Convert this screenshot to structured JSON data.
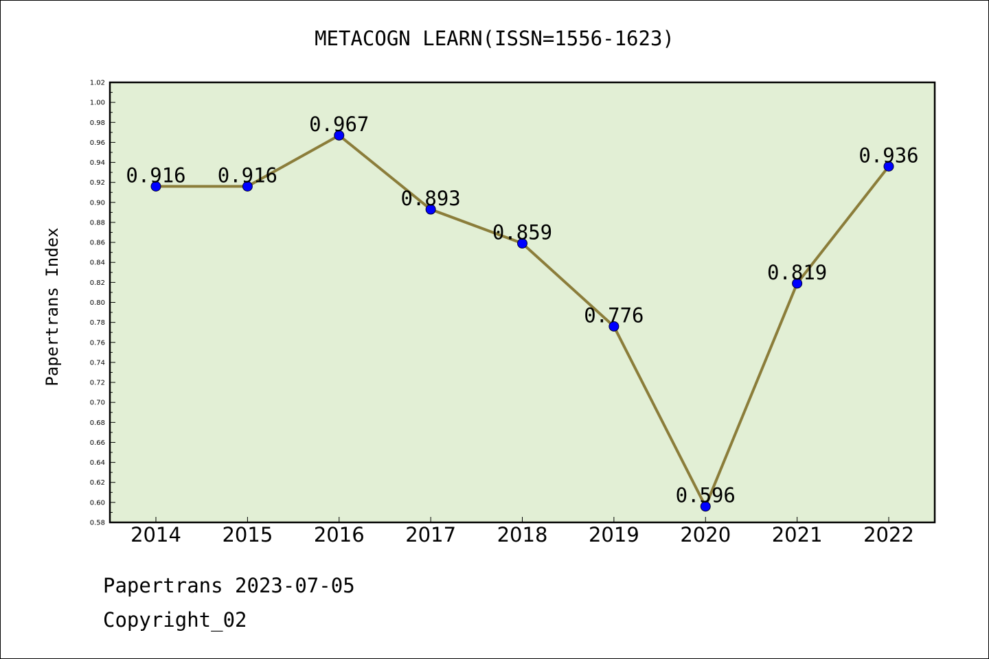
{
  "chart_data": {
    "type": "line",
    "title": "METACOGN LEARN(ISSN=1556-1623)",
    "ylabel": "Papertrans Index",
    "xlabel": "",
    "categories": [
      "2014",
      "2015",
      "2016",
      "2017",
      "2018",
      "2019",
      "2020",
      "2021",
      "2022"
    ],
    "series": [
      {
        "values": [
          0.916,
          0.916,
          0.967,
          0.893,
          0.859,
          0.776,
          0.596,
          0.819,
          0.936
        ],
        "data_labels": [
          "0.916",
          "0.916",
          "0.967",
          "0.893",
          "0.859",
          "0.776",
          "0.596",
          "0.819",
          "0.936"
        ]
      }
    ],
    "ylim": [
      0.58,
      1.02
    ],
    "yticks": [
      "0.58",
      "0.60",
      "0.62",
      "0.64",
      "0.66",
      "0.68",
      "0.70",
      "0.72",
      "0.74",
      "0.76",
      "0.78",
      "0.80",
      "0.82",
      "0.84",
      "0.86",
      "0.88",
      "0.90",
      "0.92",
      "0.94",
      "0.96",
      "0.98",
      "1.00",
      "1.02"
    ],
    "grid": false,
    "colors": {
      "plot_background": "#e2efd5",
      "line": "#8b7d3a",
      "marker": "#0000ff"
    }
  },
  "footer": {
    "line1": "Papertrans 2023-07-05",
    "line2": "Copyright_02"
  }
}
